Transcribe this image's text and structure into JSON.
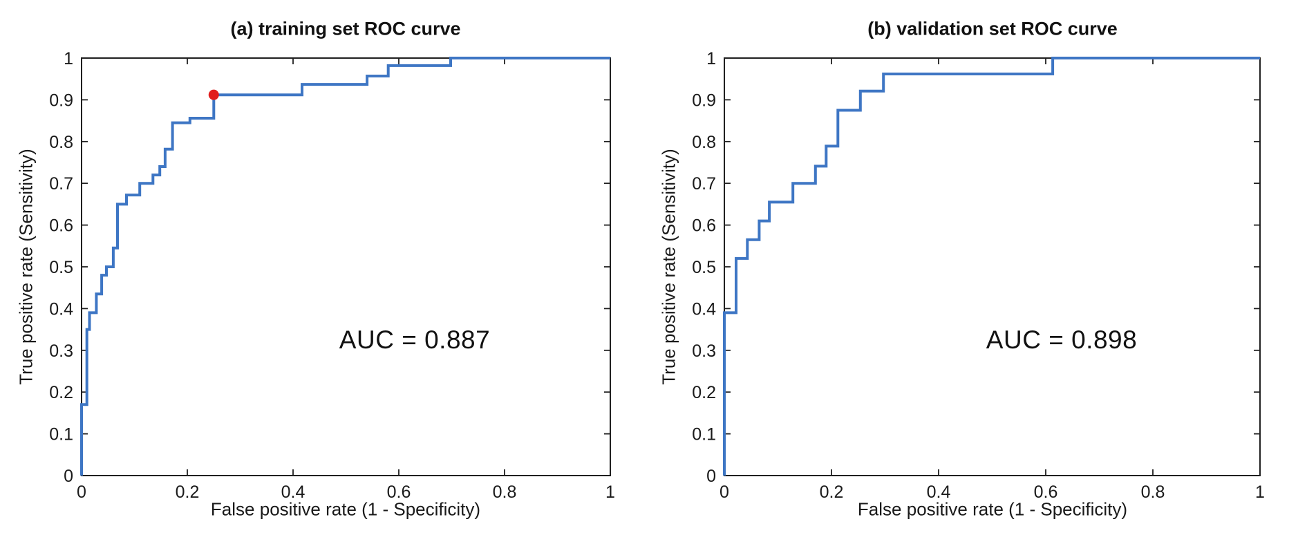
{
  "figure": {
    "background": "#ffffff",
    "axis_color": "#1f1f1f",
    "text_color": "#1a1a1a"
  },
  "chart_data": [
    {
      "type": "line",
      "id": "training",
      "title": "(a) training set ROC curve",
      "xlabel": "False positive rate (1 - Specificity)",
      "ylabel": "True positive rate (Sensitivity)",
      "xlim": [
        0,
        1
      ],
      "ylim": [
        0,
        1
      ],
      "xtick_values": [
        0,
        0.2,
        0.4,
        0.6,
        0.8,
        1
      ],
      "xtick_labels": [
        "0",
        "0.2",
        "0.4",
        "0.6",
        "0.8",
        "1"
      ],
      "ytick_values": [
        0,
        0.1,
        0.2,
        0.3,
        0.4,
        0.5,
        0.6,
        0.7,
        0.8,
        0.9,
        1
      ],
      "ytick_labels": [
        "0",
        "0.1",
        "0.2",
        "0.3",
        "0.4",
        "0.5",
        "0.6",
        "0.7",
        "0.8",
        "0.9",
        "1"
      ],
      "grid": false,
      "line_color": "#3e76c4",
      "line_width": 4,
      "step_points": [
        [
          0,
          0
        ],
        [
          0,
          0.17
        ],
        [
          0.01,
          0.17
        ],
        [
          0.01,
          0.35
        ],
        [
          0.015,
          0.35
        ],
        [
          0.015,
          0.39
        ],
        [
          0.028,
          0.39
        ],
        [
          0.028,
          0.435
        ],
        [
          0.038,
          0.435
        ],
        [
          0.038,
          0.48
        ],
        [
          0.047,
          0.48
        ],
        [
          0.047,
          0.5
        ],
        [
          0.06,
          0.5
        ],
        [
          0.06,
          0.545
        ],
        [
          0.068,
          0.545
        ],
        [
          0.068,
          0.65
        ],
        [
          0.085,
          0.65
        ],
        [
          0.085,
          0.672
        ],
        [
          0.11,
          0.672
        ],
        [
          0.11,
          0.7
        ],
        [
          0.135,
          0.7
        ],
        [
          0.135,
          0.72
        ],
        [
          0.148,
          0.72
        ],
        [
          0.148,
          0.74
        ],
        [
          0.158,
          0.74
        ],
        [
          0.158,
          0.782
        ],
        [
          0.172,
          0.782
        ],
        [
          0.172,
          0.845
        ],
        [
          0.205,
          0.845
        ],
        [
          0.205,
          0.856
        ],
        [
          0.25,
          0.856
        ],
        [
          0.25,
          0.912
        ],
        [
          0.417,
          0.912
        ],
        [
          0.417,
          0.937
        ],
        [
          0.54,
          0.937
        ],
        [
          0.54,
          0.957
        ],
        [
          0.58,
          0.957
        ],
        [
          0.58,
          0.982
        ],
        [
          0.698,
          0.982
        ],
        [
          0.698,
          1
        ],
        [
          1,
          1
        ]
      ],
      "marker": {
        "x": 0.25,
        "y": 0.912,
        "color": "#e11d1d",
        "radius": 7.5,
        "name": "operating-point"
      },
      "annotation": {
        "text": "AUC = 0.887",
        "x": 0.63,
        "y": 0.33
      }
    },
    {
      "type": "line",
      "id": "validation",
      "title": "(b) validation set ROC curve",
      "xlabel": "False positive rate (1 - Specificity)",
      "ylabel": "True positive rate (Sensitivity)",
      "xlim": [
        0,
        1
      ],
      "ylim": [
        0,
        1
      ],
      "xtick_values": [
        0,
        0.2,
        0.4,
        0.6,
        0.8,
        1
      ],
      "xtick_labels": [
        "0",
        "0.2",
        "0.4",
        "0.6",
        "0.8",
        "1"
      ],
      "ytick_values": [
        0,
        0.1,
        0.2,
        0.3,
        0.4,
        0.5,
        0.6,
        0.7,
        0.8,
        0.9,
        1
      ],
      "ytick_labels": [
        "0",
        "0.1",
        "0.2",
        "0.3",
        "0.4",
        "0.5",
        "0.6",
        "0.7",
        "0.8",
        "0.9",
        "1"
      ],
      "grid": false,
      "line_color": "#3e76c4",
      "line_width": 4,
      "step_points": [
        [
          0,
          0
        ],
        [
          0,
          0.39
        ],
        [
          0.022,
          0.39
        ],
        [
          0.022,
          0.52
        ],
        [
          0.043,
          0.52
        ],
        [
          0.043,
          0.565
        ],
        [
          0.065,
          0.565
        ],
        [
          0.065,
          0.61
        ],
        [
          0.084,
          0.61
        ],
        [
          0.084,
          0.655
        ],
        [
          0.128,
          0.655
        ],
        [
          0.128,
          0.7
        ],
        [
          0.17,
          0.7
        ],
        [
          0.17,
          0.741
        ],
        [
          0.19,
          0.741
        ],
        [
          0.19,
          0.789
        ],
        [
          0.212,
          0.789
        ],
        [
          0.212,
          0.875
        ],
        [
          0.254,
          0.875
        ],
        [
          0.254,
          0.921
        ],
        [
          0.297,
          0.921
        ],
        [
          0.297,
          0.962
        ],
        [
          0.613,
          0.962
        ],
        [
          0.613,
          1
        ],
        [
          1,
          1
        ]
      ],
      "marker": null,
      "annotation": {
        "text": "AUC = 0.898",
        "x": 0.63,
        "y": 0.33
      }
    }
  ]
}
